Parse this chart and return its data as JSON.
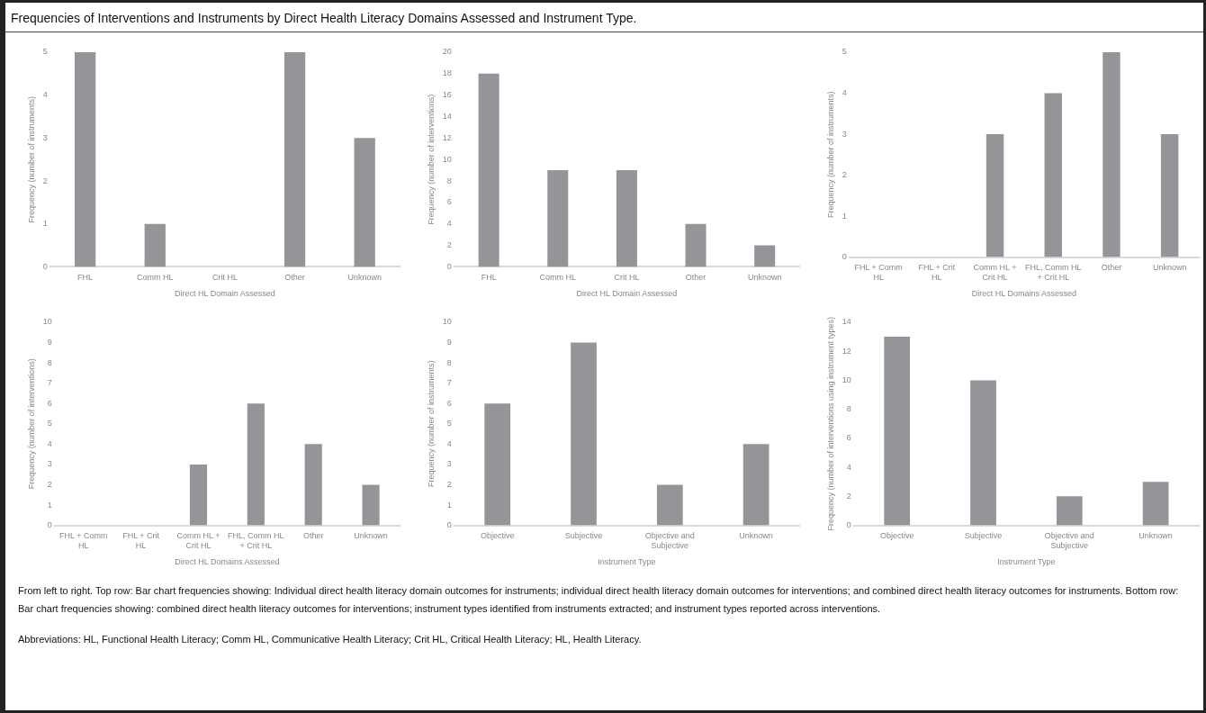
{
  "chart_data": [
    {
      "type": "bar",
      "title": "Frequencies of Interventions and Instruments by Direct Health Literacy Domains Assessed and Instrument Type.",
      "categories": [
        "FHL",
        "Comm HL",
        "Crit HL",
        "Other",
        "Unknown"
      ],
      "values": [
        5,
        1,
        0,
        5,
        3
      ],
      "color": "#939598",
      "xlabel": "Direct HL Domain Assessed",
      "ylabel": "Frequency (number of instruments)",
      "ylim": [
        0,
        5
      ],
      "yticks": [
        0,
        1,
        2,
        3,
        4,
        5
      ],
      "grid": false
    },
    {
      "type": "bar",
      "categories": [
        "FHL",
        "Comm HL",
        "Crit HL",
        "Other",
        "Unknown"
      ],
      "values": [
        18,
        9,
        9,
        4,
        2
      ],
      "color": "#939598",
      "xlabel": "Direct HL Domain Assessed",
      "ylabel": "Frequency (number of interventions)",
      "ylim": [
        0,
        20
      ],
      "yticks": [
        0,
        2,
        4,
        6,
        8,
        10,
        12,
        14,
        16,
        18,
        20
      ],
      "grid": false
    },
    {
      "type": "bar",
      "categories": [
        "FHL + Comm HL",
        "FHL + Crit HL",
        "Comm HL + Crit HL",
        "FHL, Comm HL + Crit HL",
        "Other",
        "Unknown"
      ],
      "values": [
        0,
        0,
        3,
        4,
        5,
        3
      ],
      "color": "#939598",
      "xlabel": "Direct HL Domains Assessed",
      "ylabel": "Frequency (number of instruments)",
      "ylim": [
        0,
        5
      ],
      "yticks": [
        0,
        1,
        2,
        3,
        4,
        5
      ],
      "grid": false
    },
    {
      "type": "bar",
      "categories": [
        "FHL + Comm HL",
        "FHL + Crit HL",
        "Comm HL + Crit HL",
        "FHL, Comm HL + Crit HL",
        "Other",
        "Unknown"
      ],
      "values": [
        0,
        0,
        3,
        6,
        4,
        2
      ],
      "color": "#939598",
      "xlabel": "Direct HL Domains Assessed",
      "ylabel": "Frequency (number of interventions)",
      "ylim": [
        0,
        10
      ],
      "yticks": [
        0,
        1,
        2,
        3,
        4,
        5,
        6,
        7,
        8,
        9,
        10
      ],
      "grid": false
    },
    {
      "type": "bar",
      "categories": [
        "Objective",
        "Subjective",
        "Objective and Subjective",
        "Unknown"
      ],
      "values": [
        6,
        9,
        2,
        4
      ],
      "color": "#939598",
      "xlabel": "Instrument Type",
      "ylabel": "Frequency (number of instruments)",
      "ylim": [
        0,
        10
      ],
      "yticks": [
        0,
        1,
        2,
        3,
        4,
        5,
        6,
        7,
        8,
        9,
        10
      ],
      "grid": false
    },
    {
      "type": "bar",
      "categories": [
        "Objective",
        "Subjective",
        "Objective and Subjective",
        "Unknown"
      ],
      "values": [
        13,
        10,
        2,
        3
      ],
      "color": "#939598",
      "xlabel": "Instrument Type",
      "ylabel": "Frequency (number of interventions using instrument types)",
      "ylim": [
        0,
        14
      ],
      "yticks": [
        0,
        2,
        4,
        6,
        8,
        10,
        12,
        14
      ],
      "grid": false,
      "annotations": [
        "From left to right. Top row: Bar chart frequencies showing: Individual direct health literacy domain outcomes for instruments; individual direct health literacy domain outcomes for interventions; and combined direct health literacy outcomes for instruments. Bottom row: Bar chart frequencies showing: combined direct health literacy outcomes for interventions; instrument types identified from instruments extracted; and instrument types reported across interventions.",
        "Abbreviations: HL, Functional Health Literacy; Comm HL, Communicative Health Literacy; Crit HL, Critical Health Literacy; HL, Health Literacy."
      ]
    }
  ]
}
